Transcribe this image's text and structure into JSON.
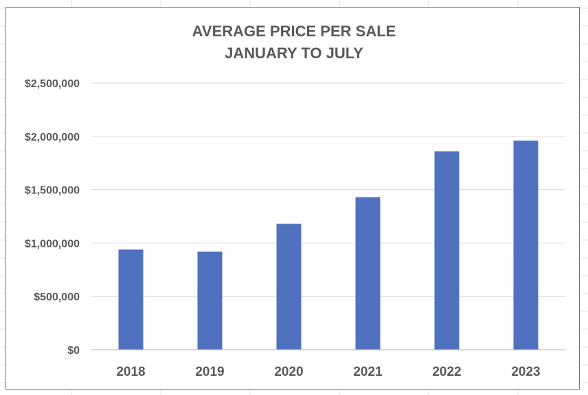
{
  "chart_data": {
    "type": "bar",
    "title": [
      "AVERAGE PRICE PER SALE",
      "JANUARY TO JULY"
    ],
    "categories": [
      "2018",
      "2019",
      "2020",
      "2021",
      "2022",
      "2023"
    ],
    "values": [
      940000,
      920000,
      1180000,
      1430000,
      1860000,
      1960000
    ],
    "ylim": [
      0,
      2500000
    ],
    "yticks": [
      0,
      500000,
      1000000,
      1500000,
      2000000,
      2500000
    ],
    "ytick_labels": [
      "$0",
      "$500,000",
      "$1,000,000",
      "$1,500,000",
      "$2,000,000",
      "$2,500,000"
    ],
    "xlabel": "",
    "ylabel": "",
    "grid": true,
    "legend": "none"
  },
  "colors": {
    "bar": "#4f71be",
    "frame_border": "#d0453a",
    "text": "#595959",
    "gridline": "#d9d9d9",
    "sheet_grid": "#e3e3e3"
  }
}
